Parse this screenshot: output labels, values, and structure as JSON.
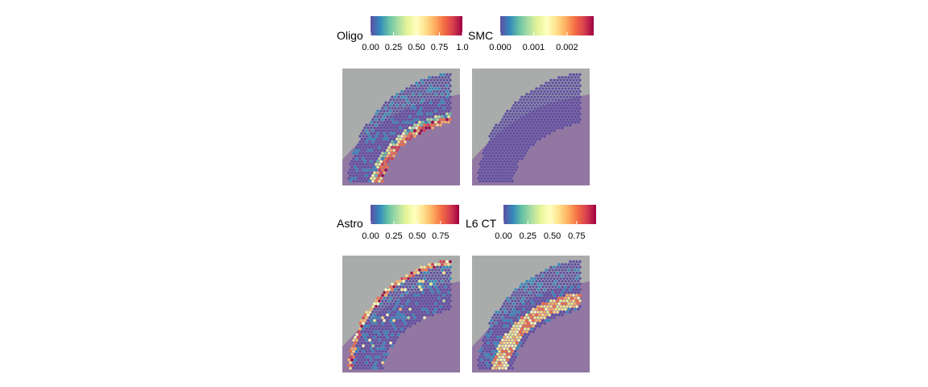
{
  "colors": {
    "spectral": [
      "#5e4fa2",
      "#3288bd",
      "#66c2a5",
      "#abdda4",
      "#e6f598",
      "#ffffbf",
      "#fee08b",
      "#fdae61",
      "#f46d43",
      "#d53e4f",
      "#9e0142"
    ],
    "tissue_gray": "#a9acab",
    "tissue_purple": "#8e6da0",
    "spot_base": "#3b3c84"
  },
  "chart_data": [
    {
      "type": "heatmap",
      "title": "Oligo",
      "legend_ticks": [
        "0.00",
        "0.25",
        "0.50",
        "0.75",
        "1.0"
      ],
      "legend_range": [
        0,
        1
      ],
      "high_region": "white-matter band along inner edge"
    },
    {
      "type": "heatmap",
      "title": "SMC",
      "legend_ticks": [
        "0.000",
        "0.001",
        "0.002"
      ],
      "legend_range": [
        0,
        0.0028
      ],
      "high_region": "none (uniformly low)"
    },
    {
      "type": "heatmap",
      "title": "Astro",
      "legend_ticks": [
        "0.00",
        "0.25",
        "0.50",
        "0.75"
      ],
      "legend_range": [
        0,
        0.95
      ],
      "high_region": "outer cortical edge (layer 1)"
    },
    {
      "type": "heatmap",
      "title": "L6 CT",
      "legend_ticks": [
        "0.00",
        "0.25",
        "0.50",
        "0.75"
      ],
      "legend_range": [
        0,
        0.95
      ],
      "high_region": "deep cortical layer above white matter"
    }
  ]
}
